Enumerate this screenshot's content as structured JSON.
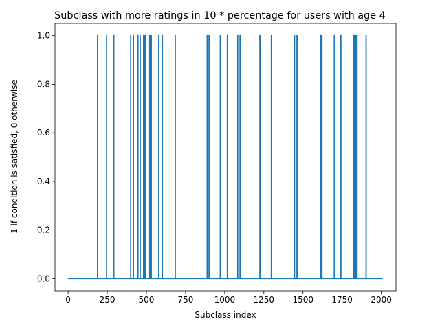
{
  "chart_data": {
    "type": "line",
    "title": "Subclass with more ratings in 10 * percentage for users with age 4",
    "xlabel": "Subclass index",
    "ylabel": "1 if condition is satisfied, 0 otherwise",
    "xlim": [
      -84,
      2094
    ],
    "ylim": [
      -0.05,
      1.05
    ],
    "x_ticks": [
      0,
      250,
      500,
      750,
      1000,
      1250,
      1500,
      1750,
      2000
    ],
    "y_ticks": [
      "0.0",
      "0.2",
      "0.4",
      "0.6",
      "0.8",
      "1.0"
    ],
    "y_tick_values": [
      0,
      0.2,
      0.4,
      0.6,
      0.8,
      1.0
    ],
    "x_range": [
      0,
      2010
    ],
    "grid": false,
    "legend": "none",
    "line_color": "#1f77b4",
    "series": [
      {
        "ones_at_x": [
          188,
          246,
          292,
          400,
          417,
          446,
          460,
          482,
          488,
          493,
          521,
          525,
          531,
          579,
          602,
          684,
          888,
          900,
          972,
          1017,
          1083,
          1098,
          1225,
          1228,
          1298,
          1446,
          1462,
          1612,
          1617,
          1621,
          1700,
          1742,
          1825,
          1830,
          1838,
          1845,
          1903
        ]
      }
    ]
  }
}
